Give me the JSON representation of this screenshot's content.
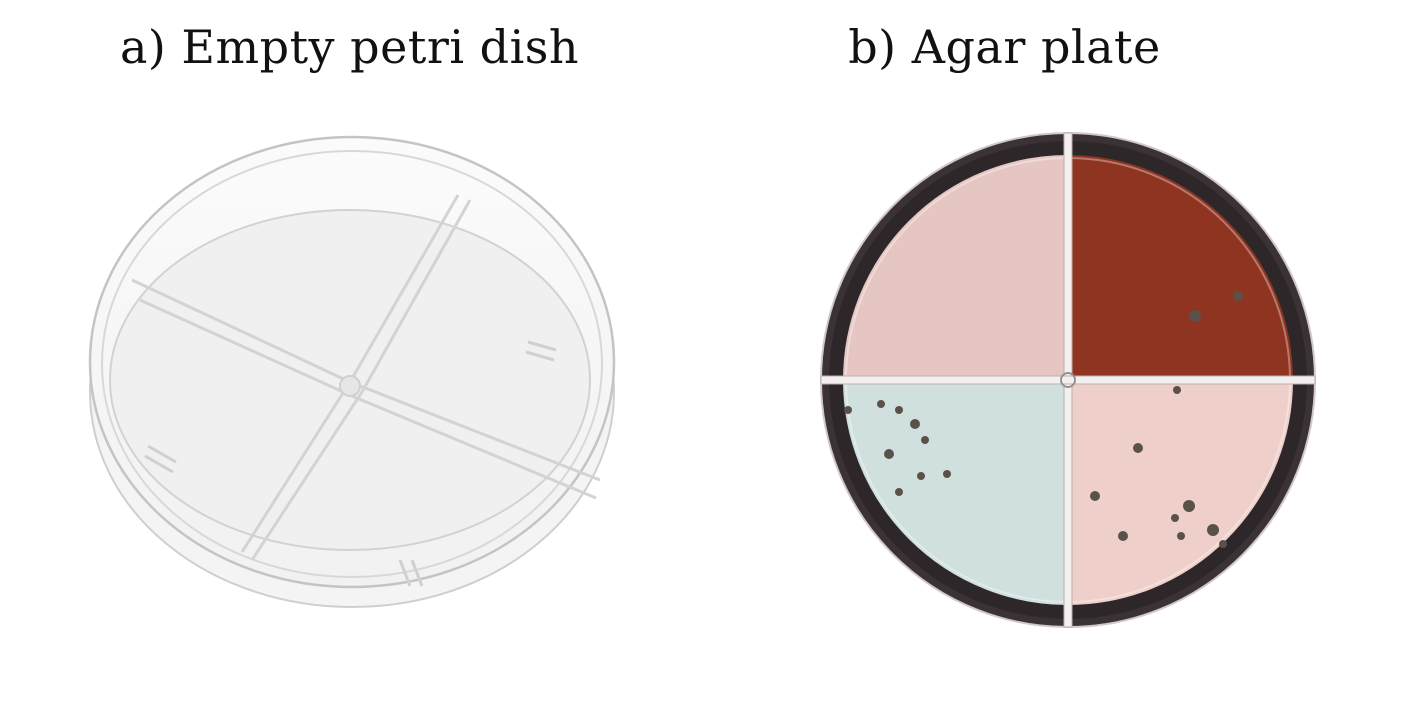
{
  "panels": [
    {
      "title": "a) Empty petri dish"
    },
    {
      "title": "b) Agar plate"
    }
  ],
  "colors": {
    "background": "#ffffff",
    "title_text": "#111111",
    "dish_outline": "#c9c9c9",
    "quadrant_top_left": "#e6c6c3",
    "quadrant_top_right": "#8e3420",
    "quadrant_bottom_left": "#cfe0df",
    "quadrant_bottom_right": "#efcfc9",
    "plate_rim": "#3a3035",
    "colony": "#5a524a"
  }
}
